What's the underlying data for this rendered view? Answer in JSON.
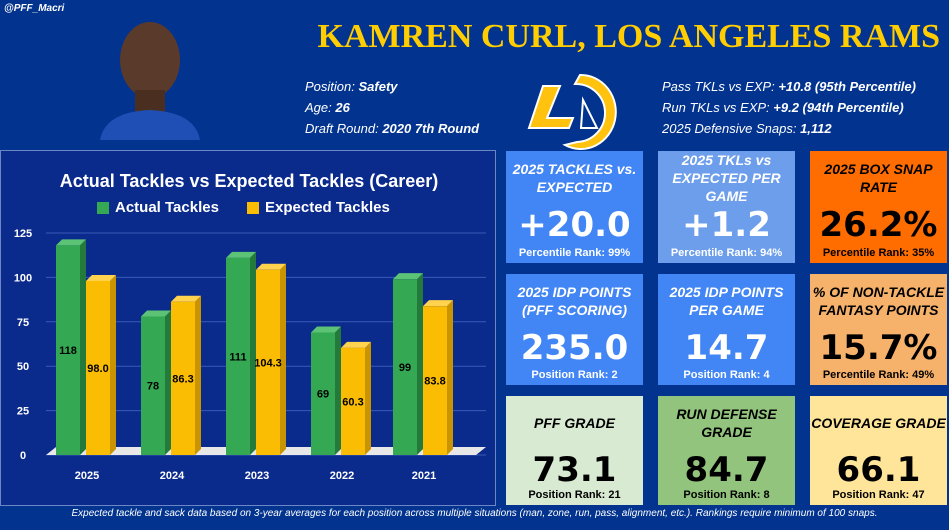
{
  "handle": "@PFF_Macri",
  "title": "KAMREN CURL, LOS ANGELES RAMS",
  "info_left": [
    {
      "label": "Position:",
      "value": "Safety"
    },
    {
      "label": "Age:",
      "value": "26"
    },
    {
      "label": "Draft Round:",
      "value": "2020 7th Round"
    }
  ],
  "info_right": [
    {
      "label": "Pass TKLs vs EXP:",
      "value": "+10.8 (95th Percentile)"
    },
    {
      "label": "Run TKLs vs EXP:",
      "value": "+9.2 (94th Percentile)"
    },
    {
      "label": "2025 Defensive Snaps:",
      "value": "1,112"
    }
  ],
  "cards": [
    {
      "title": "2025 TACKLES vs. EXPECTED",
      "value": "+20.0",
      "foot_label": "Percentile Rank:",
      "foot_value": "99%",
      "bg": "#4285f4",
      "fg": "#ffffff"
    },
    {
      "title": "2025 TKLs vs EXPECTED PER GAME",
      "value": "+1.2",
      "foot_label": "Percentile Rank:",
      "foot_value": "94%",
      "bg": "#6d9eeb",
      "fg": "#ffffff"
    },
    {
      "title": "2025 BOX SNAP RATE",
      "value": "26.2%",
      "foot_label": "Percentile Rank:",
      "foot_value": "35%",
      "bg": "#ff6d01",
      "fg": "#000000"
    },
    {
      "title": "2025 IDP POINTS (PFF SCORING)",
      "value": "235.0",
      "foot_label": "Position Rank:",
      "foot_value": "2",
      "bg": "#4285f4",
      "fg": "#ffffff"
    },
    {
      "title": "2025 IDP POINTS PER GAME",
      "value": "14.7",
      "foot_label": "Position Rank:",
      "foot_value": "4",
      "bg": "#4285f4",
      "fg": "#ffffff"
    },
    {
      "title": "% OF NON-TACKLE FANTASY POINTS",
      "value": "15.7%",
      "foot_label": "Percentile Rank:",
      "foot_value": "49%",
      "bg": "#f6b26b",
      "fg": "#000000"
    },
    {
      "title": "PFF GRADE",
      "value": "73.1",
      "foot_label": "Position Rank:",
      "foot_value": "21",
      "bg": "#d9ead3",
      "fg": "#000000"
    },
    {
      "title": "RUN DEFENSE GRADE",
      "value": "84.7",
      "foot_label": "Position Rank:",
      "foot_value": "8",
      "bg": "#93c47d",
      "fg": "#000000"
    },
    {
      "title": "COVERAGE GRADE",
      "value": "66.1",
      "foot_label": "Position Rank:",
      "foot_value": "47",
      "bg": "#ffe599",
      "fg": "#000000"
    }
  ],
  "footer": "Expected tackle and sack data based on 3-year averages for each position across multiple situations (man, zone, run, pass, alignment, etc.). Rankings require minimum of 100 snaps.",
  "chart_data": {
    "type": "bar",
    "title": "Actual Tackles vs Expected Tackles (Career)",
    "categories": [
      "2025",
      "2024",
      "2023",
      "2022",
      "2021"
    ],
    "series": [
      {
        "name": "Actual Tackles",
        "values": [
          118,
          78,
          111,
          69,
          99
        ],
        "color": "#34a853"
      },
      {
        "name": "Expected Tackles",
        "values": [
          98.0,
          86.3,
          104.3,
          60.3,
          83.8
        ],
        "color": "#fbbc04"
      }
    ],
    "yticks": [
      0,
      25,
      50,
      75,
      100,
      125
    ],
    "ylim": [
      0,
      125
    ],
    "legend": "top",
    "grid": true
  }
}
